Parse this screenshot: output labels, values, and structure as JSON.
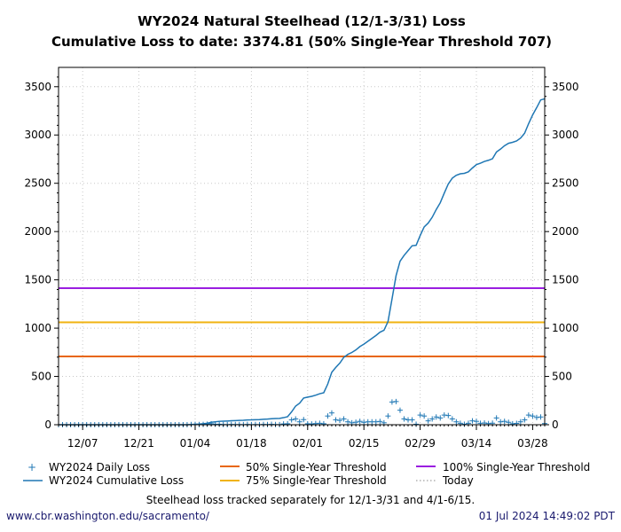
{
  "chart_data": {
    "type": "line",
    "title": "WY2024 Natural Steelhead (12/1-3/31) Loss",
    "subtitle": "Cumulative Loss to date: 3374.81 (50% Single-Year Threshold 707)",
    "xlim": [
      "2023-12-01",
      "2024-03-31"
    ],
    "x_interval": "daily",
    "ylim": [
      0,
      3700
    ],
    "yticks": [
      0,
      500,
      1000,
      1500,
      2000,
      2500,
      3000,
      3500
    ],
    "xticks": [
      "12/07",
      "12/21",
      "01/04",
      "01/18",
      "02/01",
      "02/15",
      "02/29",
      "03/14",
      "03/28"
    ],
    "grid": true,
    "legend_placement": "bottom",
    "series": [
      {
        "name": "WY2024 Daily Loss",
        "style": "plus-marker",
        "color": "#1f77b4",
        "values": [
          0,
          0,
          0,
          0,
          0,
          0,
          0,
          0,
          0,
          0,
          0,
          0,
          0,
          0,
          0,
          0,
          0,
          0,
          0,
          0,
          0,
          0,
          0,
          0,
          0,
          0,
          0,
          0,
          0,
          0,
          0,
          0,
          0,
          2,
          3,
          2,
          3,
          5,
          10,
          5,
          5,
          2,
          1,
          3,
          2,
          2,
          1,
          3,
          1,
          2,
          1,
          3,
          2,
          4,
          2,
          1,
          8,
          10,
          50,
          60,
          30,
          53,
          10,
          8,
          12,
          15,
          10,
          90,
          122,
          50,
          45,
          60,
          30,
          20,
          26,
          35,
          25,
          30,
          30,
          30,
          34,
          20,
          90,
          235,
          240,
          150,
          60,
          50,
          50,
          5,
          100,
          90,
          40,
          60,
          80,
          70,
          100,
          95,
          60,
          30,
          15,
          5,
          15,
          40,
          35,
          15,
          18,
          12,
          16,
          70,
          30,
          35,
          25,
          10,
          14,
          30,
          50,
          100,
          90,
          75,
          80,
          11.81
        ]
      },
      {
        "name": "WY2024 Cumulative Loss",
        "style": "line",
        "color": "#1f77b4",
        "values": [
          0,
          0,
          0,
          0,
          0,
          0,
          0,
          0,
          0,
          0,
          0,
          0,
          0,
          0,
          0,
          0,
          0,
          0,
          0,
          0,
          0,
          0,
          0,
          0,
          0,
          0,
          0,
          0,
          0,
          0,
          0,
          0,
          0,
          2,
          5,
          7,
          10,
          15,
          25,
          30,
          35,
          37,
          38,
          41,
          43,
          45,
          46,
          49,
          50,
          52,
          53,
          56,
          58,
          62,
          64,
          65,
          73,
          83,
          133,
          193,
          223,
          276,
          286,
          294,
          306,
          321,
          331,
          421,
          543,
          593,
          638,
          698,
          728,
          748,
          774,
          809,
          834,
          864,
          894,
          924,
          958,
          978,
          1068,
          1303,
          1543,
          1693,
          1753,
          1803,
          1853,
          1858,
          1958,
          2048,
          2088,
          2148,
          2228,
          2298,
          2398,
          2493,
          2553,
          2583,
          2598,
          2603,
          2618,
          2658,
          2693,
          2708,
          2726,
          2738,
          2754,
          2824,
          2854,
          2889,
          2914,
          2924,
          2938,
          2968,
          3018,
          3118,
          3208,
          3283,
          3363,
          3374.81
        ]
      }
    ],
    "thresholds": [
      {
        "name": "50% Single-Year Threshold",
        "value": 707,
        "color": "#e8660c"
      },
      {
        "name": "75% Single-Year Threshold",
        "value": 1060.5,
        "color": "#f0b310"
      },
      {
        "name": "100% Single-Year Threshold",
        "value": 1414,
        "color": "#9a1ee0"
      }
    ],
    "today": {
      "name": "Today",
      "style": "dotted",
      "color": "#888888"
    },
    "note": "Steelhead loss tracked separately for 12/1-3/31 and 4/1-6/15."
  },
  "footer": {
    "url": "www.cbr.washington.edu/sacramento/",
    "timestamp": "01 Jul 2024 14:49:02 PDT"
  }
}
